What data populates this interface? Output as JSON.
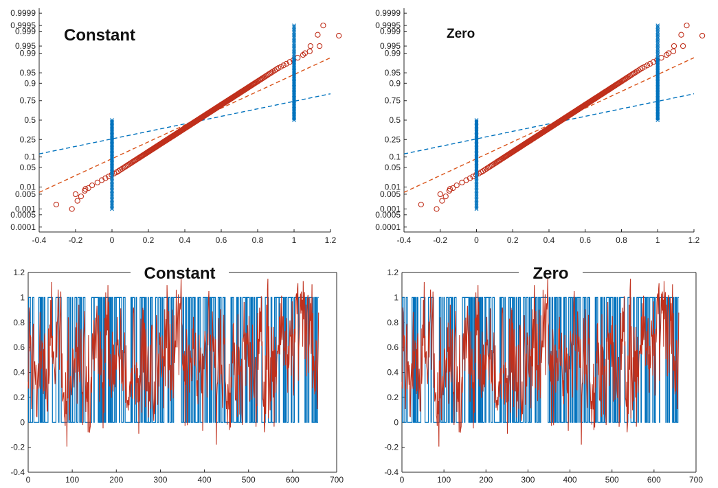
{
  "colors": {
    "blue": "#0072bd",
    "red": "#c0301c",
    "red_fit": "#d95319",
    "axis": "#262626"
  },
  "chart_data": [
    {
      "type": "scatter",
      "panel": "top-left",
      "title": "Constant",
      "xlabel": "",
      "ylabel": "",
      "xlim": [
        -0.4,
        1.2
      ],
      "xticks": [
        -0.4,
        -0.2,
        0,
        0.2,
        0.4,
        0.6,
        0.8,
        1,
        1.2
      ],
      "yticks": [
        0.0001,
        0.0005,
        0.001,
        0.005,
        0.01,
        0.05,
        0.1,
        0.25,
        0.5,
        0.75,
        0.9,
        0.95,
        0.99,
        0.995,
        0.999,
        0.9995,
        0.9999
      ],
      "ytick_labels": [
        "0.0001",
        "0.0005",
        "0.001",
        "0.005",
        "0.01",
        "0.05",
        "0.1",
        "0.25",
        "0.5",
        "0.75",
        "0.9",
        "0.95",
        "0.99",
        "0.995",
        "0.999",
        "0.9995",
        "0.9999"
      ],
      "y_scale": "normal probability",
      "series": [
        {
          "kind": "markers-x",
          "x_values": [
            0,
            1
          ],
          "p_range": [
            [
              0.001,
              0.5
            ],
            [
              0.5,
              0.9995
            ]
          ]
        },
        {
          "kind": "markers-o",
          "x_range": [
            -0.22,
            1.16
          ],
          "p_range": [
            0.001,
            0.9995
          ]
        },
        {
          "kind": "fit-line",
          "x_range": [
            -0.4,
            1.2
          ],
          "p_range": [
            0.006,
            0.985
          ]
        },
        {
          "kind": "fit-line",
          "x_range": [
            -0.4,
            1.2
          ],
          "p_range": [
            0.12,
            0.82
          ]
        }
      ]
    },
    {
      "type": "scatter",
      "panel": "top-right",
      "title": "Zero",
      "xlabel": "",
      "ylabel": "",
      "xlim": [
        -0.4,
        1.2
      ],
      "xticks": [
        -0.4,
        -0.2,
        0,
        0.2,
        0.4,
        0.6,
        0.8,
        1,
        1.2
      ],
      "yticks": [
        0.0001,
        0.0005,
        0.001,
        0.005,
        0.01,
        0.05,
        0.1,
        0.25,
        0.5,
        0.75,
        0.9,
        0.95,
        0.99,
        0.995,
        0.999,
        0.9995,
        0.9999
      ],
      "ytick_labels": [
        "0.0001",
        "0.0005",
        "0.001",
        "0.005",
        "0.01",
        "0.05",
        "0.1",
        "0.25",
        "0.5",
        "0.75",
        "0.9",
        "0.95",
        "0.99",
        "0.995",
        "0.999",
        "0.9995",
        "0.9999"
      ],
      "y_scale": "normal probability",
      "series": [
        {
          "kind": "markers-x",
          "x_values": [
            0,
            1
          ],
          "p_range": [
            [
              0.001,
              0.5
            ],
            [
              0.5,
              0.9995
            ]
          ]
        },
        {
          "kind": "markers-o",
          "x_range": [
            -0.22,
            1.16
          ],
          "p_range": [
            0.001,
            0.9995
          ]
        },
        {
          "kind": "fit-line",
          "x_range": [
            -0.4,
            1.2
          ],
          "p_range": [
            0.006,
            0.985
          ]
        },
        {
          "kind": "fit-line",
          "x_range": [
            -0.4,
            1.2
          ],
          "p_range": [
            0.12,
            0.82
          ]
        }
      ]
    },
    {
      "type": "line",
      "panel": "bottom-left",
      "title": "Constant",
      "xlabel": "",
      "ylabel": "",
      "xlim": [
        0,
        700
      ],
      "ylim": [
        -0.4,
        1.2
      ],
      "xticks": [
        0,
        100,
        200,
        300,
        400,
        500,
        600,
        700
      ],
      "yticks": [
        -0.4,
        -0.2,
        0,
        0.2,
        0.4,
        0.6,
        0.8,
        1,
        1.2
      ],
      "ytick_labels": [
        "-0.4",
        "-0.2",
        "0",
        "0.2",
        "0.4",
        "0.6",
        "0.8",
        "1",
        "1.2"
      ],
      "n_points": 660,
      "series": [
        {
          "kind": "binary-target",
          "value_set": [
            0,
            1
          ]
        },
        {
          "kind": "prediction",
          "range": [
            -0.22,
            1.15
          ]
        }
      ]
    },
    {
      "type": "line",
      "panel": "bottom-right",
      "title": "Zero",
      "xlabel": "",
      "ylabel": "",
      "xlim": [
        0,
        700
      ],
      "ylim": [
        -0.4,
        1.2
      ],
      "xticks": [
        0,
        100,
        200,
        300,
        400,
        500,
        600,
        700
      ],
      "yticks": [
        -0.4,
        -0.2,
        0,
        0.2,
        0.4,
        0.6,
        0.8,
        1,
        1.2
      ],
      "ytick_labels": [
        "-0.4",
        "-0.2",
        "0",
        "0.2",
        "0.4",
        "0.6",
        "0.8",
        "1",
        "1.2"
      ],
      "n_points": 660,
      "series": [
        {
          "kind": "binary-target",
          "value_set": [
            0,
            1
          ]
        },
        {
          "kind": "prediction",
          "range": [
            -0.22,
            1.15
          ]
        }
      ]
    }
  ]
}
